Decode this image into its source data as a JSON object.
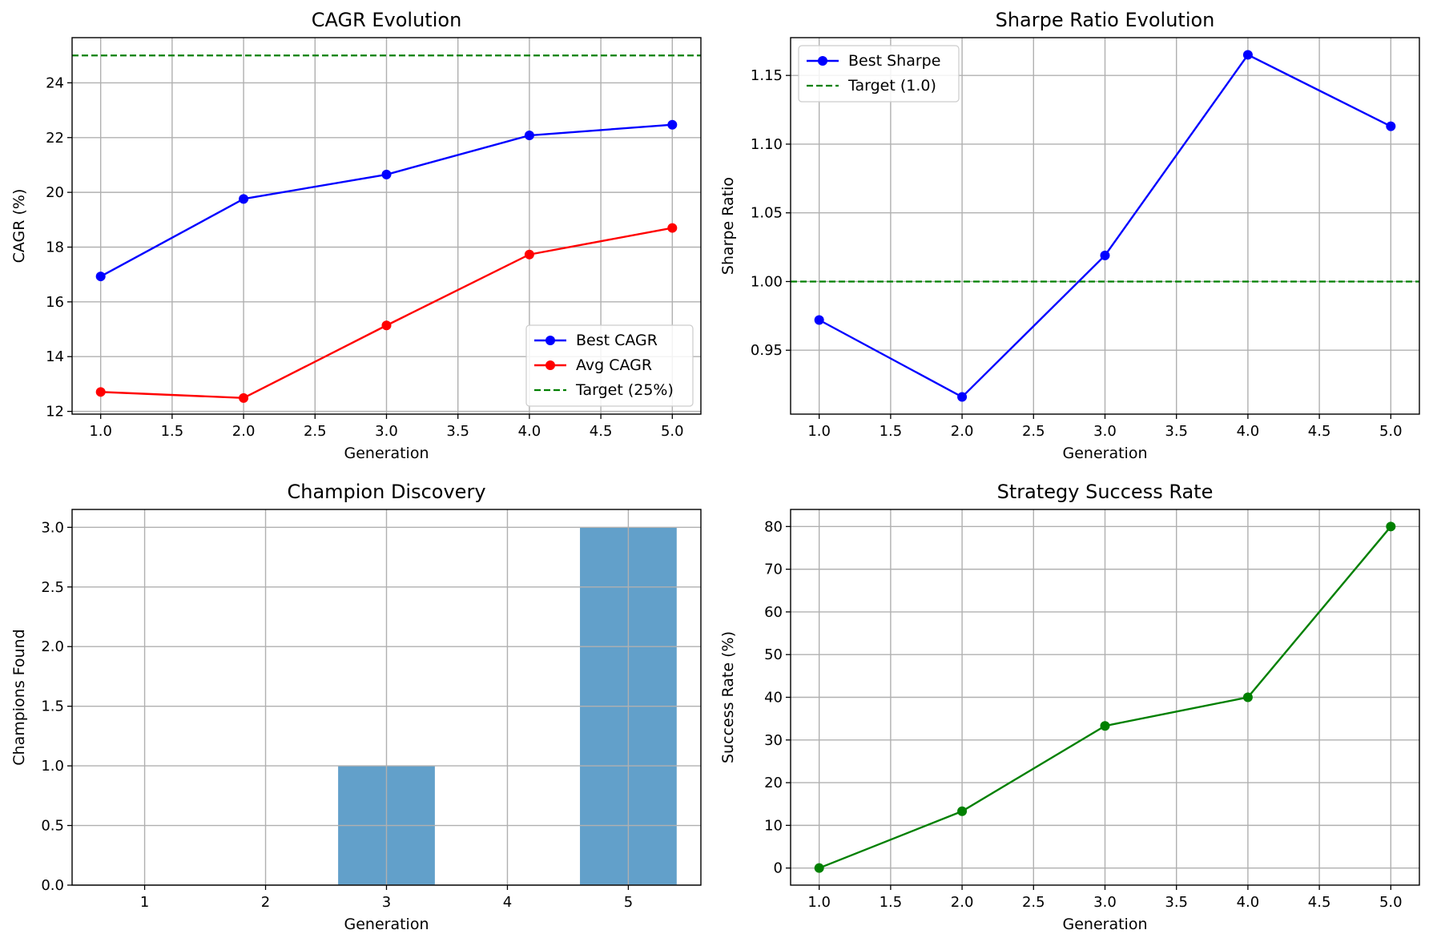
{
  "chart_data": [
    {
      "type": "line",
      "title": "CAGR Evolution",
      "xlabel": "Generation",
      "ylabel": "CAGR (%)",
      "xlim": [
        0.8,
        5.2
      ],
      "ylim": [
        11.9,
        25.65
      ],
      "xticks": [
        1.0,
        1.5,
        2.0,
        2.5,
        3.0,
        3.5,
        4.0,
        4.5,
        5.0
      ],
      "xtick_labels": [
        "1.0",
        "1.5",
        "2.0",
        "2.5",
        "3.0",
        "3.5",
        "4.0",
        "4.5",
        "5.0"
      ],
      "yticks": [
        12,
        14,
        16,
        18,
        20,
        22,
        24
      ],
      "ytick_labels": [
        "12",
        "14",
        "16",
        "18",
        "20",
        "22",
        "24"
      ],
      "grid": true,
      "legend_position": "lower-right",
      "x": [
        1,
        2,
        3,
        4,
        5
      ],
      "series": [
        {
          "name": "Best CAGR",
          "values": [
            16.93,
            19.76,
            20.65,
            22.08,
            22.47
          ],
          "color": "#0000ff",
          "style": "line-marker"
        },
        {
          "name": "Avg CAGR",
          "values": [
            12.71,
            12.49,
            15.14,
            17.73,
            18.7
          ],
          "color": "#ff0000",
          "style": "line-marker"
        }
      ],
      "hlines": [
        {
          "name": "Target (25%)",
          "value": 25,
          "color": "#008000",
          "style": "dashed"
        }
      ]
    },
    {
      "type": "line",
      "title": "Sharpe Ratio Evolution",
      "xlabel": "Generation",
      "ylabel": "Sharpe Ratio",
      "xlim": [
        0.8,
        5.2
      ],
      "ylim": [
        0.9035,
        1.1775
      ],
      "xticks": [
        1.0,
        1.5,
        2.0,
        2.5,
        3.0,
        3.5,
        4.0,
        4.5,
        5.0
      ],
      "xtick_labels": [
        "1.0",
        "1.5",
        "2.0",
        "2.5",
        "3.0",
        "3.5",
        "4.0",
        "4.5",
        "5.0"
      ],
      "yticks": [
        0.95,
        1.0,
        1.05,
        1.1,
        1.15
      ],
      "ytick_labels": [
        "0.95",
        "1.00",
        "1.05",
        "1.10",
        "1.15"
      ],
      "grid": true,
      "legend_position": "upper-left",
      "x": [
        1,
        2,
        3,
        4,
        5
      ],
      "series": [
        {
          "name": "Best Sharpe",
          "values": [
            0.972,
            0.916,
            1.019,
            1.165,
            1.113
          ],
          "color": "#0000ff",
          "style": "line-marker"
        }
      ],
      "hlines": [
        {
          "name": "Target (1.0)",
          "value": 1.0,
          "color": "#008000",
          "style": "dashed"
        }
      ]
    },
    {
      "type": "bar",
      "title": "Champion Discovery",
      "xlabel": "Generation",
      "ylabel": "Champions Found",
      "xlim": [
        0.4,
        5.6
      ],
      "ylim": [
        0,
        3.15
      ],
      "xticks": [
        1,
        2,
        3,
        4,
        5
      ],
      "xtick_labels": [
        "1",
        "2",
        "3",
        "4",
        "5"
      ],
      "yticks": [
        0,
        0.5,
        1.0,
        1.5,
        2.0,
        2.5,
        3.0
      ],
      "ytick_labels": [
        "0.0",
        "0.5",
        "1.0",
        "1.5",
        "2.0",
        "2.5",
        "3.0"
      ],
      "grid": true,
      "categories": [
        1,
        2,
        3,
        4,
        5
      ],
      "values": [
        0,
        0,
        1,
        0,
        3
      ],
      "bar_color": "#1f77b4",
      "bar_alpha": 0.7,
      "bar_width": 0.8
    },
    {
      "type": "line",
      "title": "Strategy Success Rate",
      "xlabel": "Generation",
      "ylabel": "Success Rate (%)",
      "xlim": [
        0.8,
        5.2
      ],
      "ylim": [
        -4,
        84
      ],
      "xticks": [
        1.0,
        1.5,
        2.0,
        2.5,
        3.0,
        3.5,
        4.0,
        4.5,
        5.0
      ],
      "xtick_labels": [
        "1.0",
        "1.5",
        "2.0",
        "2.5",
        "3.0",
        "3.5",
        "4.0",
        "4.5",
        "5.0"
      ],
      "yticks": [
        0,
        10,
        20,
        30,
        40,
        50,
        60,
        70,
        80
      ],
      "ytick_labels": [
        "0",
        "10",
        "20",
        "30",
        "40",
        "50",
        "60",
        "70",
        "80"
      ],
      "grid": true,
      "x": [
        1,
        2,
        3,
        4,
        5
      ],
      "series": [
        {
          "values": [
            0,
            13.3,
            33.3,
            40,
            80
          ],
          "color": "#008000",
          "style": "line-marker"
        }
      ]
    }
  ],
  "style": {
    "grid_color": "#b0b0b0",
    "axis_color": "#000000"
  }
}
